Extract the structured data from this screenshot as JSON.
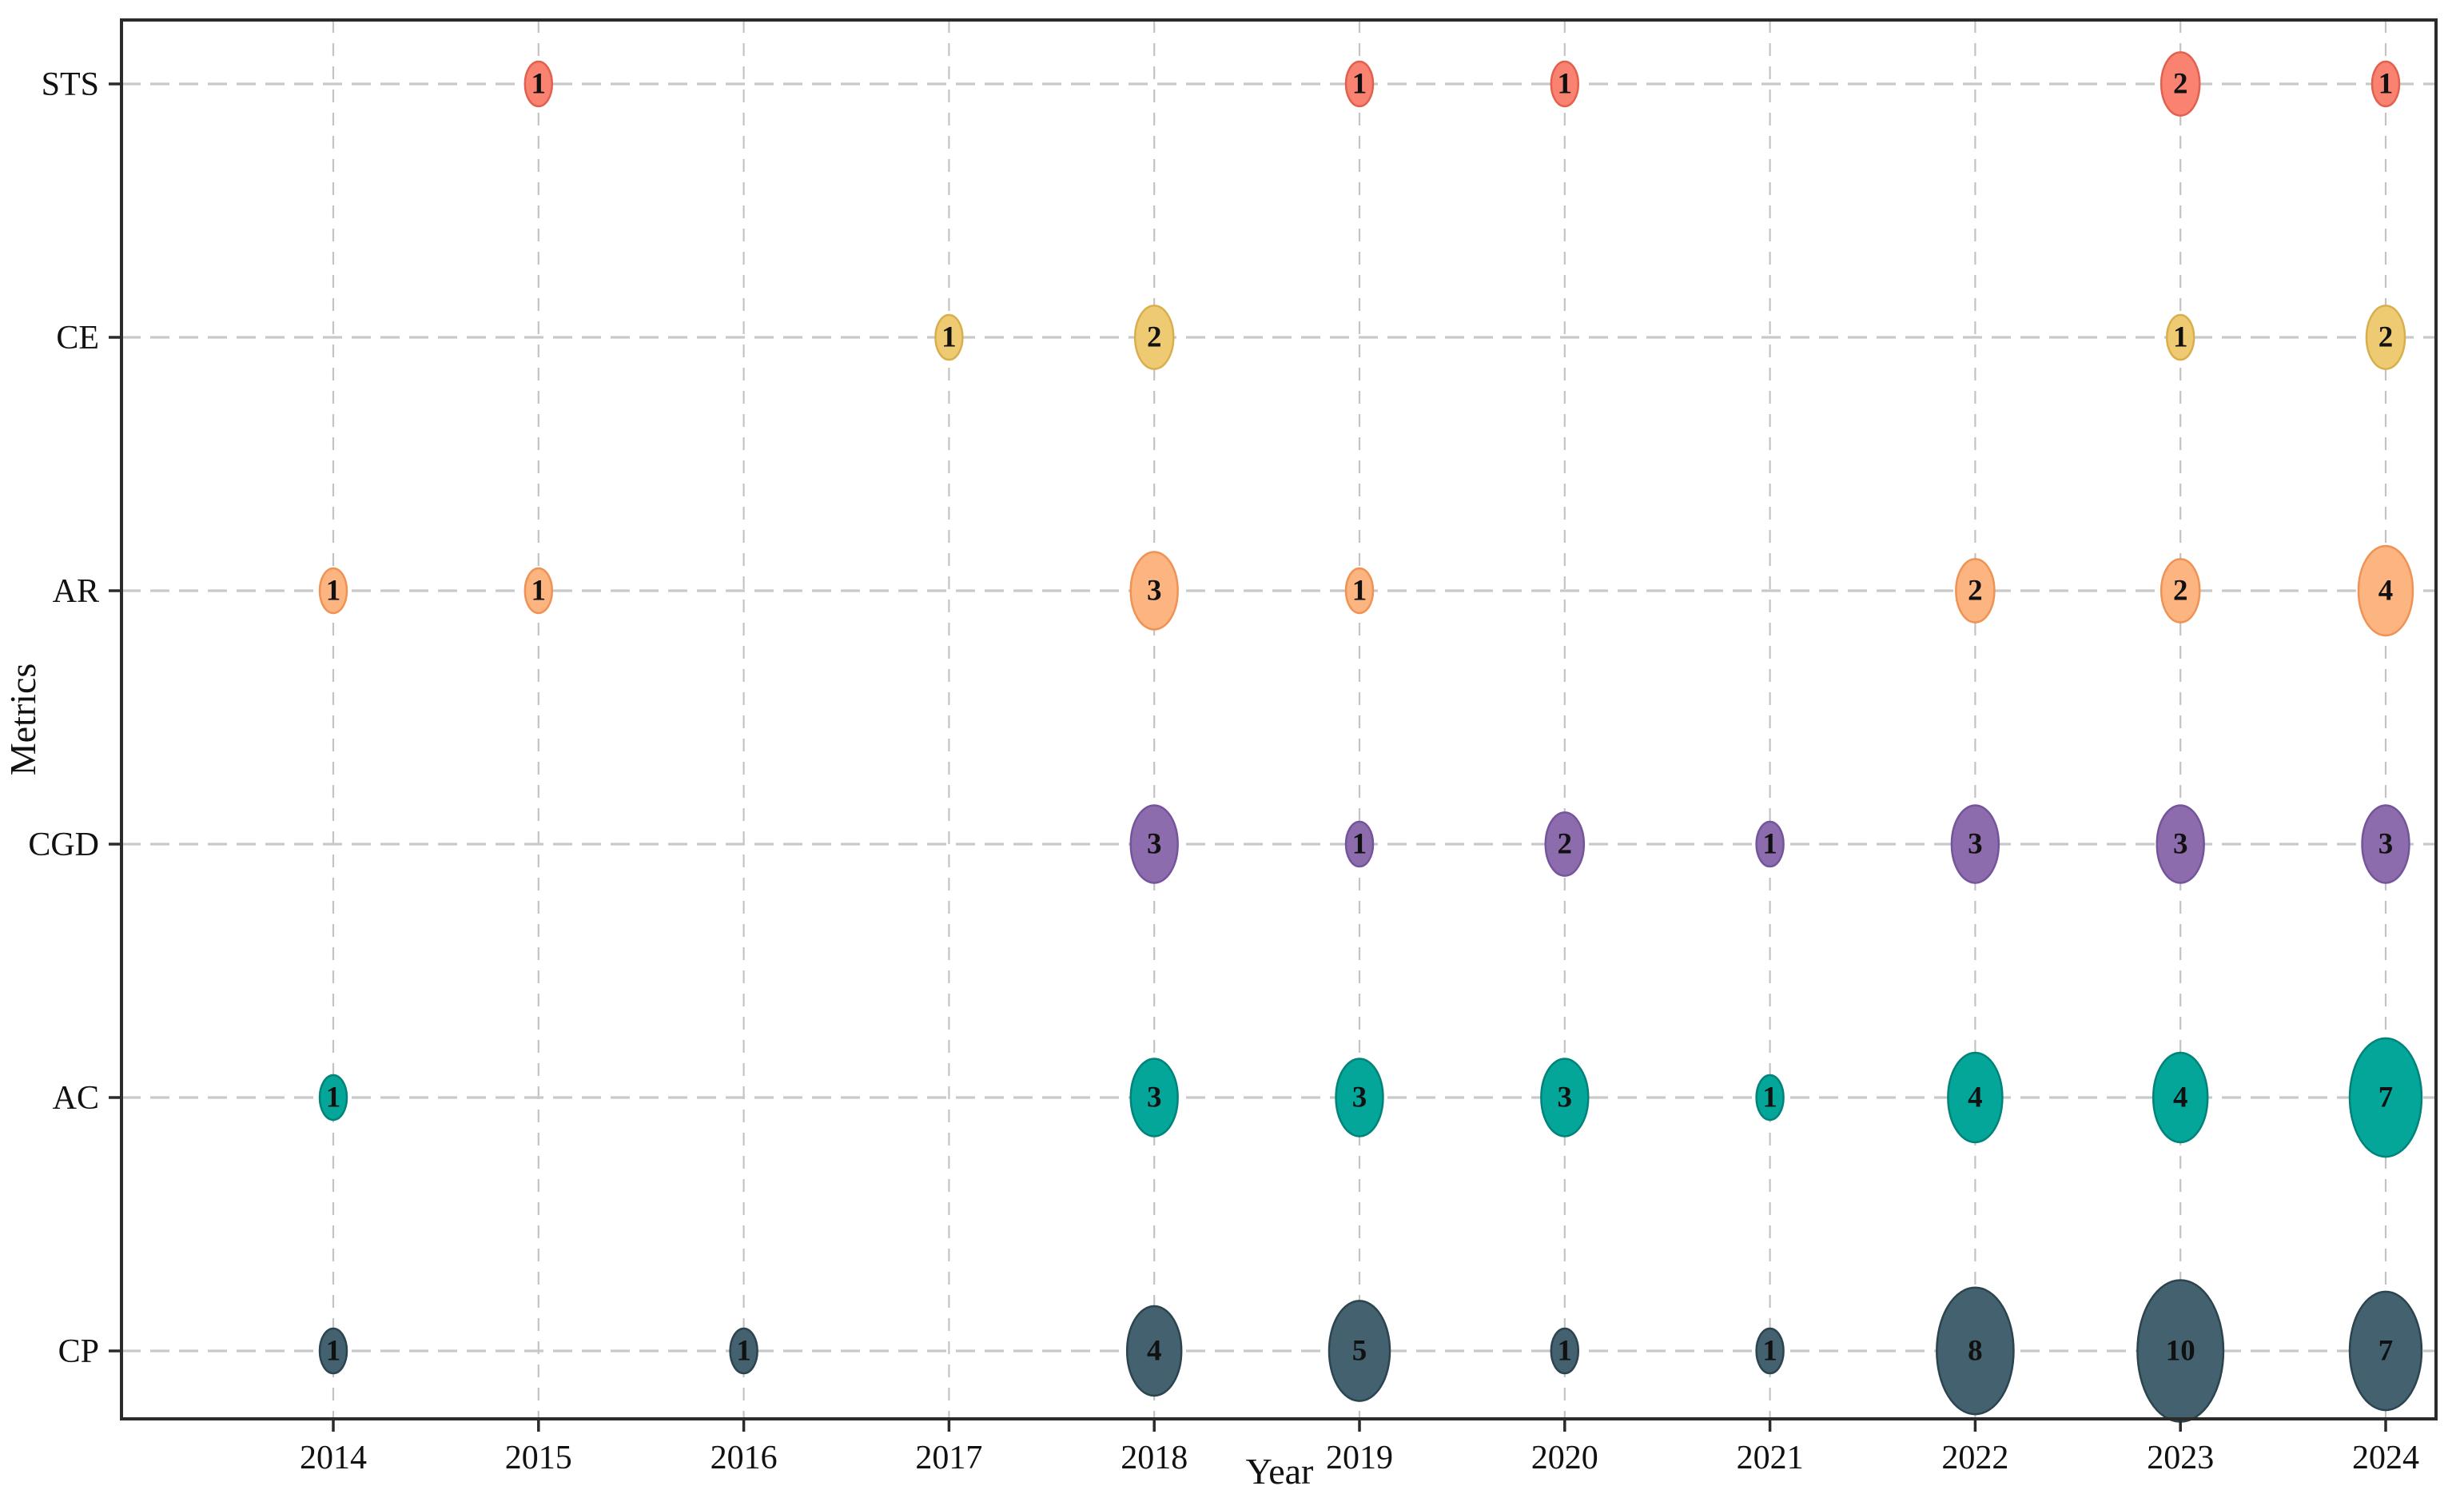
{
  "chart_data": {
    "type": "scatter",
    "subtype": "bubble",
    "title": "",
    "xlabel": "Year",
    "ylabel": "Metrics",
    "x_categories": [
      "2014",
      "2015",
      "2016",
      "2017",
      "2018",
      "2019",
      "2020",
      "2021",
      "2022",
      "2023",
      "2024"
    ],
    "y_categories_top_to_bottom": [
      "STS",
      "CE",
      "AR",
      "CGD",
      "AC",
      "CP"
    ],
    "grid": true,
    "grid_style": "dashed",
    "legend": false,
    "bubble_size_rule": "bubble area proportional to labeled count; count printed inside each bubble",
    "series": [
      {
        "name": "STS",
        "fill": "#f98270",
        "edge": "#e2604e",
        "points": [
          [
            "2015",
            1
          ],
          [
            "2019",
            1
          ],
          [
            "2020",
            1
          ],
          [
            "2023",
            2
          ],
          [
            "2024",
            1
          ]
        ]
      },
      {
        "name": "CE",
        "fill": "#eeca72",
        "edge": "#d9ae4d",
        "points": [
          [
            "2017",
            1
          ],
          [
            "2018",
            2
          ],
          [
            "2023",
            1
          ],
          [
            "2024",
            2
          ]
        ]
      },
      {
        "name": "AR",
        "fill": "#fcb480",
        "edge": "#ef9254",
        "points": [
          [
            "2014",
            1
          ],
          [
            "2015",
            1
          ],
          [
            "2018",
            3
          ],
          [
            "2019",
            1
          ],
          [
            "2022",
            2
          ],
          [
            "2023",
            2
          ],
          [
            "2024",
            4
          ]
        ]
      },
      {
        "name": "CGD",
        "fill": "#8d6cae",
        "edge": "#74549b",
        "points": [
          [
            "2018",
            3
          ],
          [
            "2019",
            1
          ],
          [
            "2020",
            2
          ],
          [
            "2021",
            1
          ],
          [
            "2022",
            3
          ],
          [
            "2023",
            3
          ],
          [
            "2024",
            3
          ]
        ]
      },
      {
        "name": "AC",
        "fill": "#04a69a",
        "edge": "#02837a",
        "points": [
          [
            "2014",
            1
          ],
          [
            "2018",
            3
          ],
          [
            "2019",
            3
          ],
          [
            "2020",
            3
          ],
          [
            "2021",
            1
          ],
          [
            "2022",
            4
          ],
          [
            "2023",
            4
          ],
          [
            "2024",
            7
          ]
        ]
      },
      {
        "name": "CP",
        "fill": "#44616f",
        "edge": "#2c4450",
        "points": [
          [
            "2014",
            1
          ],
          [
            "2016",
            1
          ],
          [
            "2018",
            4
          ],
          [
            "2019",
            5
          ],
          [
            "2020",
            1
          ],
          [
            "2021",
            1
          ],
          [
            "2022",
            8
          ],
          [
            "2023",
            10
          ],
          [
            "2024",
            7
          ]
        ]
      }
    ],
    "colors": {
      "grid_vertical": "#c3c3c3",
      "grid_horizontal": "#c9c9c9",
      "spine": "#2b2b2b",
      "label_text": "#111111"
    }
  }
}
